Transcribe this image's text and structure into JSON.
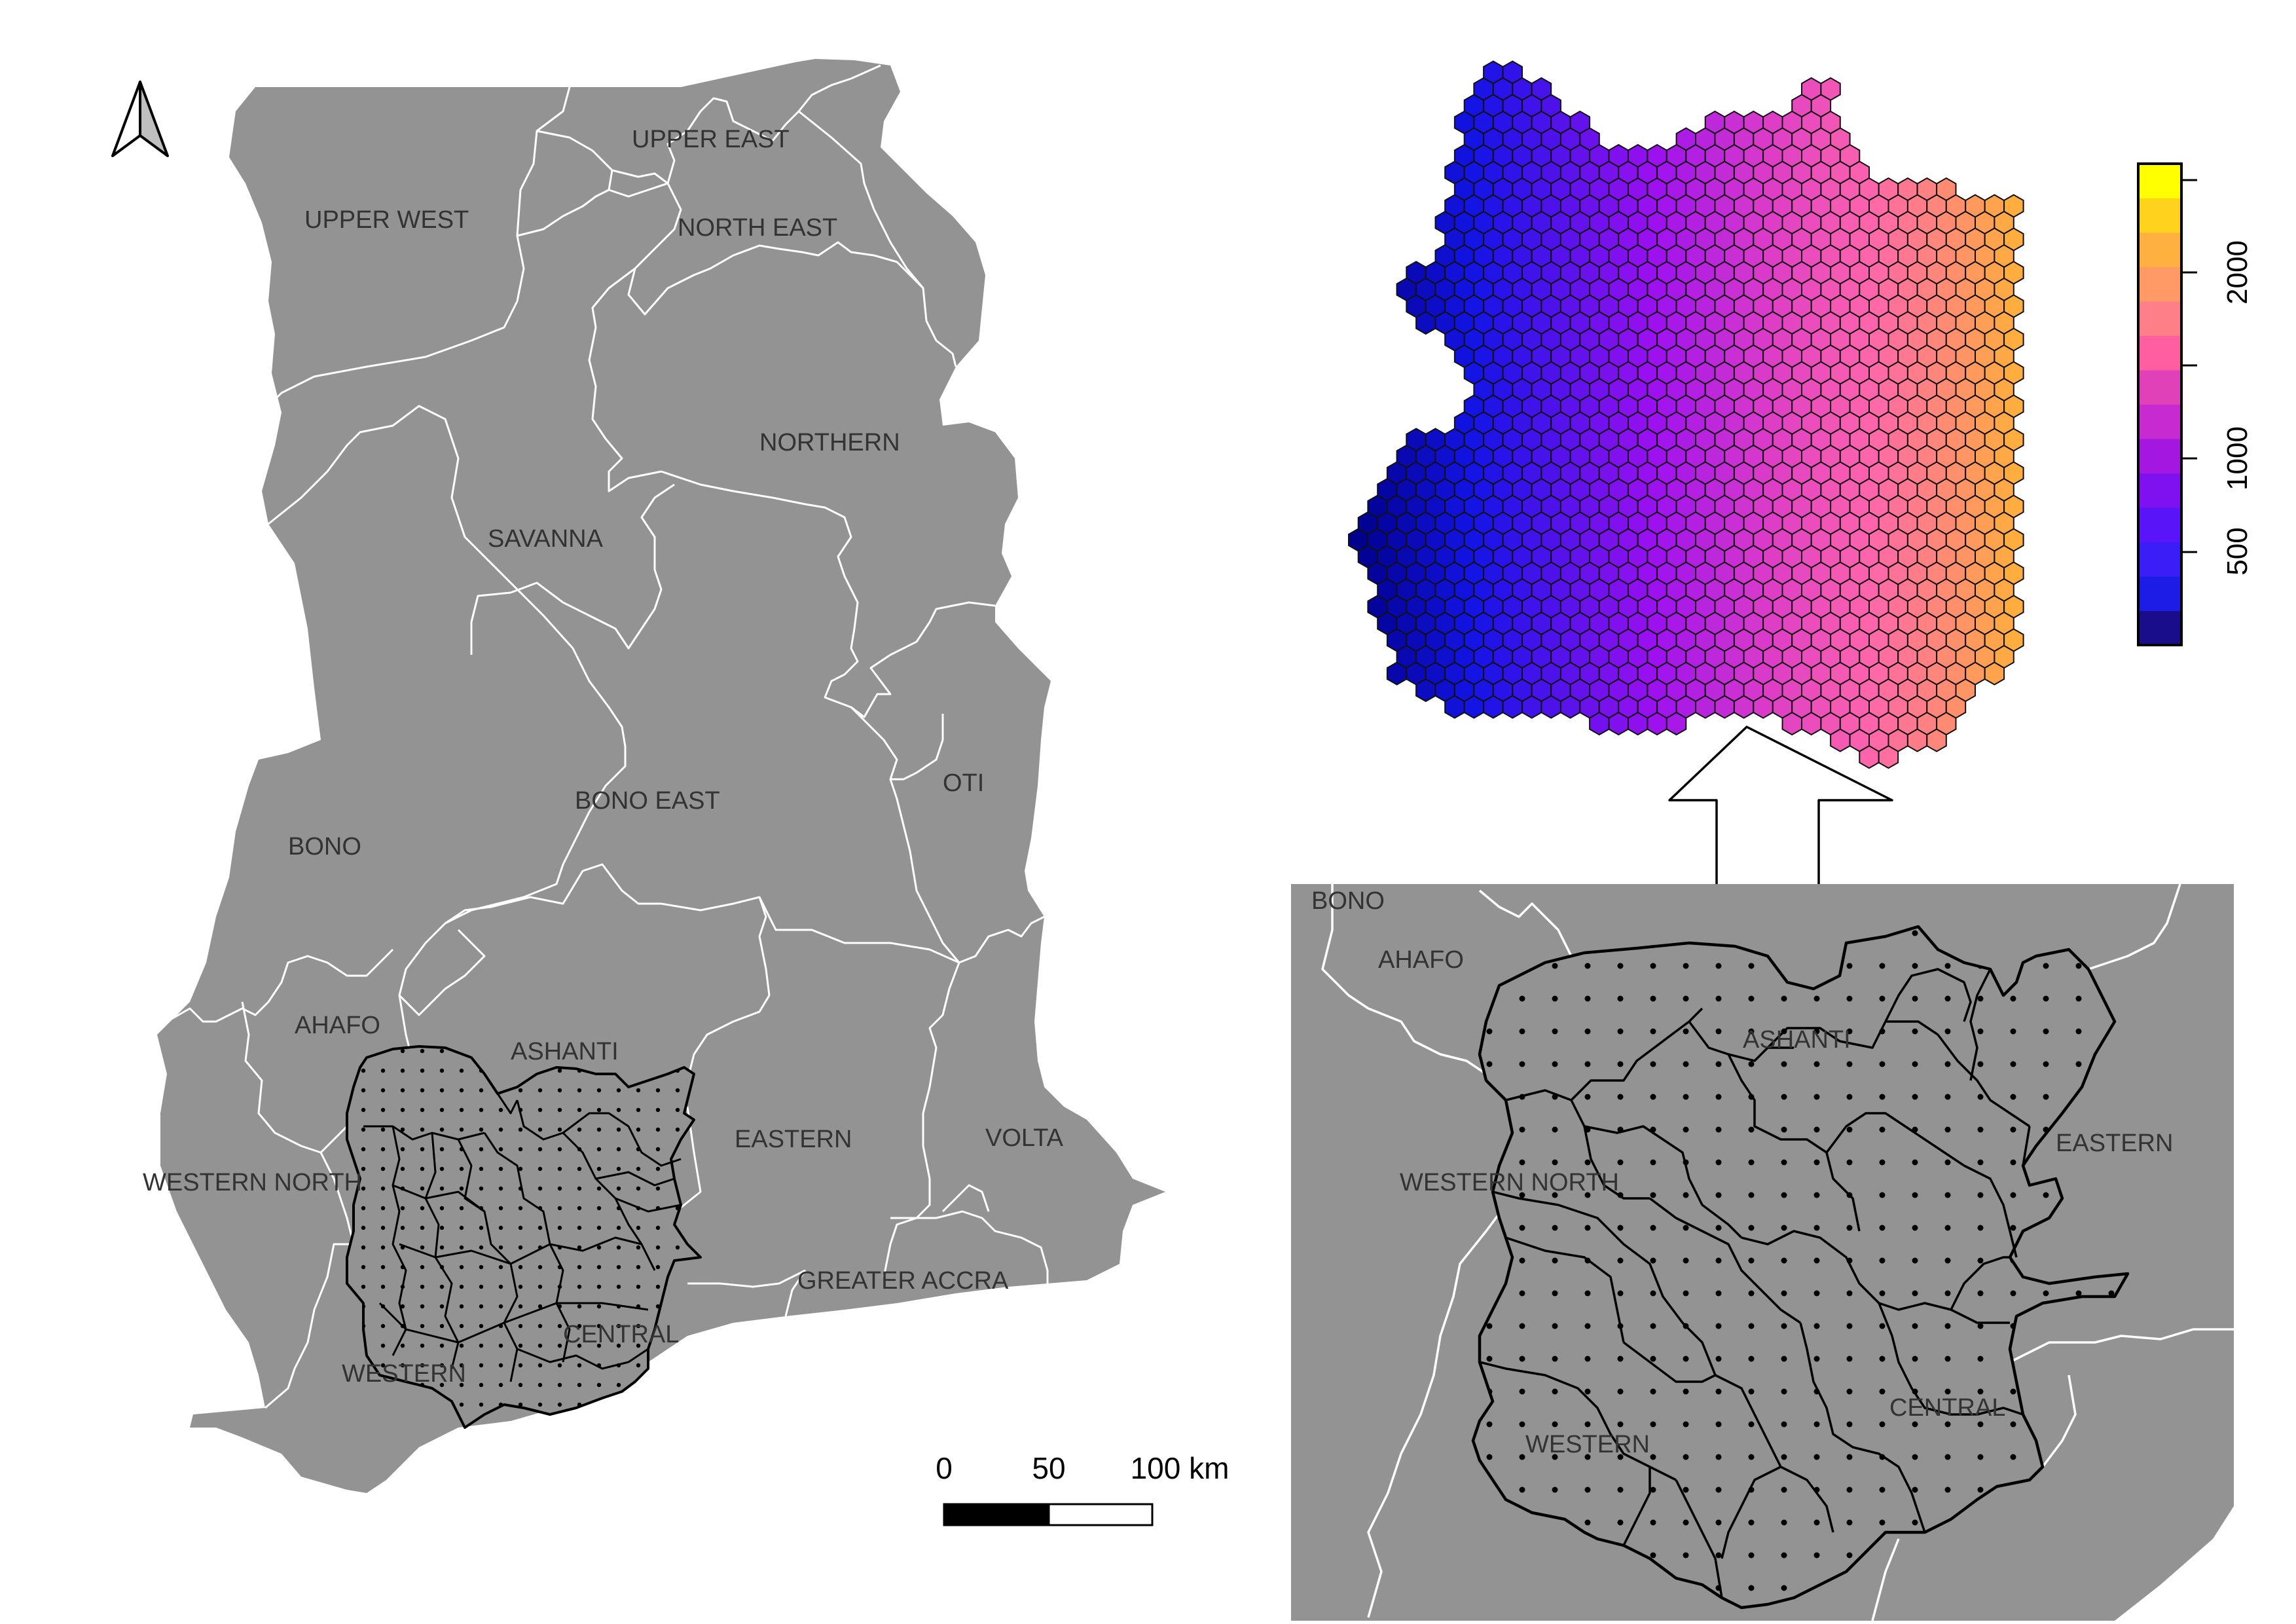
{
  "main_map": {
    "labels": {
      "upper_east": "UPPER EAST",
      "upper_west": "UPPER WEST",
      "north_east": "NORTH EAST",
      "northern": "NORTHERN",
      "savanna": "SAVANNA",
      "bono_east": "BONO EAST",
      "oti": "OTI",
      "bono": "BONO",
      "ahafo": "AHAFO",
      "ashanti": "ASHANTI",
      "eastern": "EASTERN",
      "volta": "VOLTA",
      "western_north": "WESTERN NORTH",
      "greater_accra": "GREATER ACCRA",
      "central": "CENTRAL",
      "western": "WESTERN"
    },
    "scale_bar": {
      "tick_0": "0",
      "tick_50": "50",
      "tick_100": "100 km"
    }
  },
  "inset_map": {
    "labels": {
      "bono": "BONO",
      "ahafo": "AHAFO",
      "ashanti": "ASHANTI",
      "eastern": "EASTERN",
      "western_north": "WESTERN NORTH",
      "central": "CENTRAL",
      "western": "WESTERN"
    }
  },
  "legend": {
    "tick_labels": [
      "500",
      "1000",
      "2000"
    ],
    "tick_values": [
      500,
      1000,
      2000
    ],
    "colors": [
      "#1a0d8c",
      "#1c1ce6",
      "#3a1ef5",
      "#5a14f8",
      "#7f10f0",
      "#a417e0",
      "#c62ad0",
      "#e040b8",
      "#ff5fa0",
      "#ff7f88",
      "#ff9966",
      "#ffb13f",
      "#ffd21e",
      "#ffff00"
    ]
  },
  "colors": {
    "land": "#939393",
    "boundary": "#ffffff",
    "district_outline": "#000000",
    "hex_low": "#00008b",
    "hex_mid": "#9b10f0",
    "hex_high": "#ff66aa",
    "hex_top": "#ffb03a"
  },
  "icons": {
    "north_arrow": "north-arrow-icon",
    "flow_arrow": "up-arrow-icon"
  }
}
